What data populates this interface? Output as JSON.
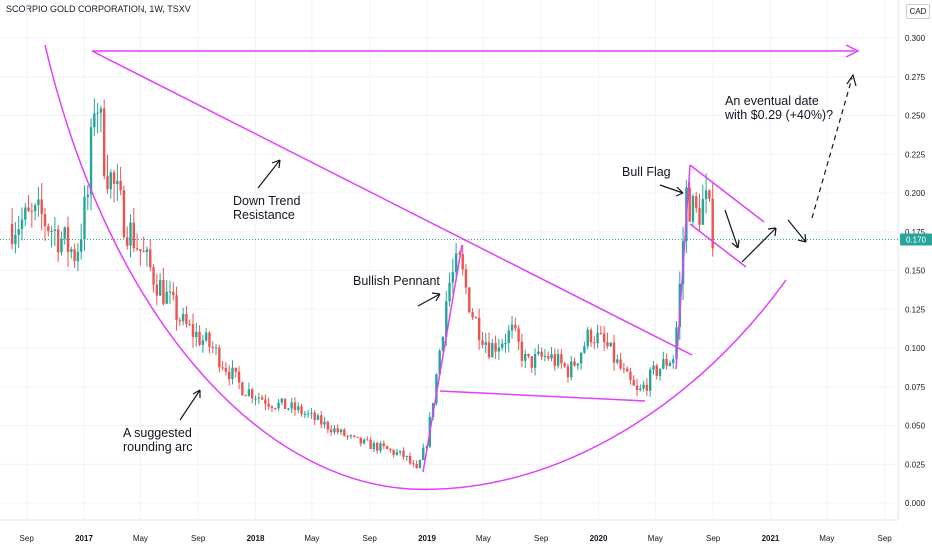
{
  "header": {
    "title": "SCORPIO GOLD CORPORATION, 1W, TSXV",
    "currency": "CAD"
  },
  "colors": {
    "up": "#26a69a",
    "down": "#ef5350",
    "annotation": "#e040fb",
    "last_price_line": "#26a69a",
    "text": "#131722"
  },
  "chart_data": {
    "type": "candlestick",
    "symbol": "SCORPIO GOLD CORPORATION",
    "interval": "1W",
    "exchange": "TSXV",
    "currency": "CAD",
    "last_price_label": "0.170",
    "last_price": 0.17,
    "ylim": [
      -0.01,
      0.305
    ],
    "y_ticks": [
      "0.300",
      "0.275",
      "0.250",
      "0.225",
      "0.200",
      "0.175",
      "0.150",
      "0.125",
      "0.100",
      "0.075",
      "0.050",
      "0.025",
      "0.000"
    ],
    "x_ticks": [
      "Sep",
      "2017",
      "May",
      "Sep",
      "2018",
      "May",
      "Sep",
      "2019",
      "May",
      "Sep",
      "2020",
      "May",
      "Sep",
      "2021",
      "May",
      "Sep"
    ],
    "annotations": [
      {
        "id": "down-trend",
        "lines": [
          "Down Trend",
          "Resistance"
        ]
      },
      {
        "id": "bullish-pennant",
        "lines": [
          "Bullish Pennant"
        ]
      },
      {
        "id": "bull-flag",
        "lines": [
          "Bull Flag"
        ]
      },
      {
        "id": "rounding-arc",
        "lines": [
          "A suggested",
          "rounding arc"
        ]
      },
      {
        "id": "target",
        "lines": [
          "An eventual date",
          "with $0.29 (+40%)?"
        ]
      }
    ],
    "candles_close_anchors": [
      {
        "date": "2016-08-01",
        "close": 0.18
      },
      {
        "date": "2016-10-01",
        "close": 0.185
      },
      {
        "date": "2016-12-15",
        "close": 0.16
      },
      {
        "date": "2017-01-10",
        "close": 0.2
      },
      {
        "date": "2017-01-25",
        "close": 0.27
      },
      {
        "date": "2017-02-15",
        "close": 0.22
      },
      {
        "date": "2017-04-01",
        "close": 0.18
      },
      {
        "date": "2017-06-01",
        "close": 0.145
      },
      {
        "date": "2017-08-01",
        "close": 0.115
      },
      {
        "date": "2017-10-01",
        "close": 0.1
      },
      {
        "date": "2017-12-01",
        "close": 0.075
      },
      {
        "date": "2018-02-01",
        "close": 0.065
      },
      {
        "date": "2018-04-01",
        "close": 0.06
      },
      {
        "date": "2018-06-01",
        "close": 0.05
      },
      {
        "date": "2018-08-01",
        "close": 0.04
      },
      {
        "date": "2018-10-01",
        "close": 0.035
      },
      {
        "date": "2018-11-15",
        "close": 0.03
      },
      {
        "date": "2018-12-10",
        "close": 0.02
      },
      {
        "date": "2019-01-01",
        "close": 0.04
      },
      {
        "date": "2019-01-20",
        "close": 0.08
      },
      {
        "date": "2019-02-15",
        "close": 0.14
      },
      {
        "date": "2019-03-10",
        "close": 0.155
      },
      {
        "date": "2019-04-10",
        "close": 0.12
      },
      {
        "date": "2019-05-15",
        "close": 0.1
      },
      {
        "date": "2019-07-01",
        "close": 0.11
      },
      {
        "date": "2019-08-01",
        "close": 0.09
      },
      {
        "date": "2019-09-15",
        "close": 0.095
      },
      {
        "date": "2019-11-01",
        "close": 0.085
      },
      {
        "date": "2019-12-15",
        "close": 0.11
      },
      {
        "date": "2020-01-20",
        "close": 0.1
      },
      {
        "date": "2020-03-01",
        "close": 0.08
      },
      {
        "date": "2020-03-25",
        "close": 0.07
      },
      {
        "date": "2020-05-01",
        "close": 0.085
      },
      {
        "date": "2020-06-10",
        "close": 0.095
      },
      {
        "date": "2020-06-25",
        "close": 0.15
      },
      {
        "date": "2020-07-05",
        "close": 0.2
      },
      {
        "date": "2020-07-25",
        "close": 0.185
      },
      {
        "date": "2020-08-15",
        "close": 0.195
      },
      {
        "date": "2020-09-05",
        "close": 0.17
      }
    ]
  }
}
